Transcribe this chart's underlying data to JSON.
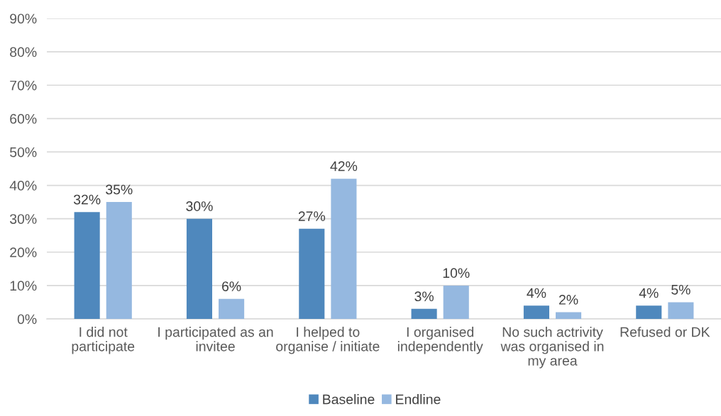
{
  "chart_data": {
    "type": "bar",
    "categories": [
      "I did not\nparticipate",
      "I participated as an\ninvitee",
      "I helped to\norganise / initiate",
      "I organised\nindependently",
      "No such actrivity\nwas organised in\nmy area",
      "Refused or DK"
    ],
    "series": [
      {
        "name": "Baseline",
        "color": "#4f88bd",
        "values": [
          32,
          30,
          27,
          3,
          4,
          4
        ],
        "value_labels": [
          "32%",
          "30%",
          "27%",
          "3%",
          "4%",
          "4%"
        ]
      },
      {
        "name": "Endline",
        "color": "#95b8e0",
        "values": [
          35,
          6,
          42,
          10,
          2,
          5
        ],
        "value_labels": [
          "35%",
          "6%",
          "42%",
          "10%",
          "2%",
          "5%"
        ]
      }
    ],
    "ylim": [
      0,
      90
    ],
    "yticks": [
      {
        "value": 0,
        "label": "0%"
      },
      {
        "value": 10,
        "label": "10%"
      },
      {
        "value": 20,
        "label": "20%"
      },
      {
        "value": 30,
        "label": "30%"
      },
      {
        "value": 40,
        "label": "40%"
      },
      {
        "value": 50,
        "label": "50%"
      },
      {
        "value": 60,
        "label": "60%"
      },
      {
        "value": 70,
        "label": "70%"
      },
      {
        "value": 80,
        "label": "80%"
      },
      {
        "value": 90,
        "label": "90%"
      }
    ],
    "grid": "y",
    "legend": "bottom"
  }
}
